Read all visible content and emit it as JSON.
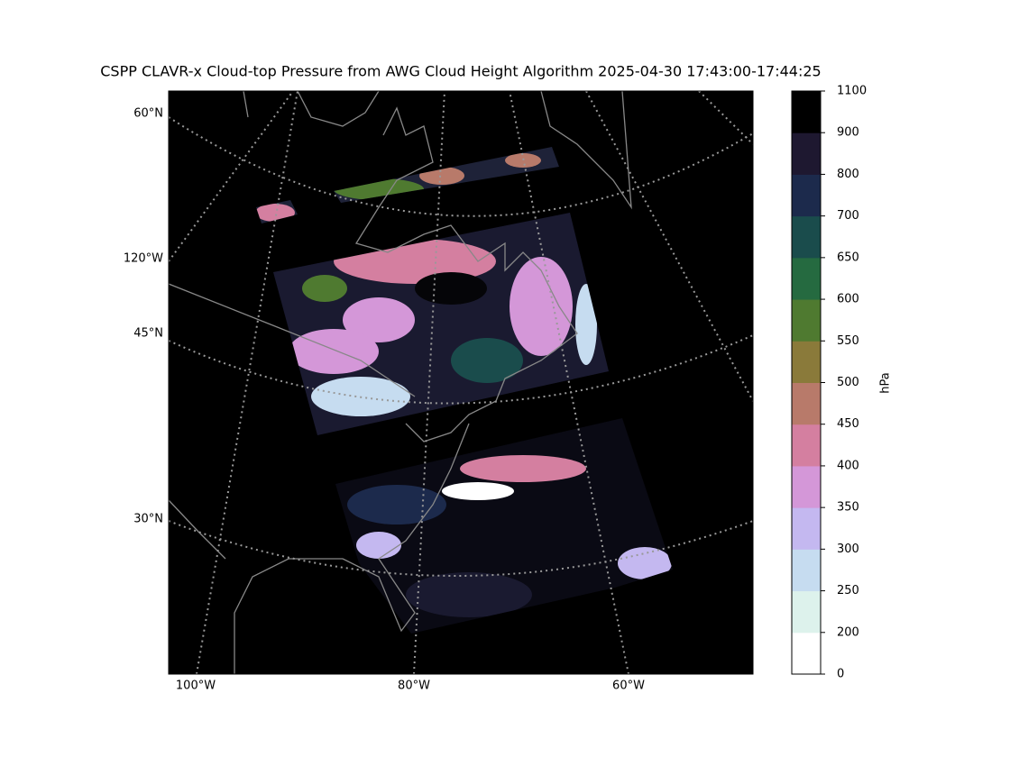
{
  "title": "CSPP CLAVR-x Cloud-top Pressure from AWG Cloud Height Algorithm 2025-04-30 17:43:00-17:44:25",
  "map": {
    "lat_labels": [
      "60°N",
      "45°N",
      "30°N"
    ],
    "lon_labels": [
      "120°W",
      "100°W",
      "80°W",
      "60°W"
    ]
  },
  "colorbar": {
    "label": "hPa",
    "ticks": [
      0,
      200,
      250,
      300,
      350,
      400,
      450,
      500,
      550,
      600,
      650,
      700,
      800,
      900,
      1100
    ],
    "colors": [
      "#ffffff",
      "#ddf2ec",
      "#c6dcf0",
      "#c4b8f0",
      "#d497d8",
      "#d47fa0",
      "#b87a6a",
      "#8a7a3a",
      "#4f7a30",
      "#256a40",
      "#1a4c4c",
      "#1c2a4c",
      "#1e1830",
      "#000000"
    ]
  }
}
